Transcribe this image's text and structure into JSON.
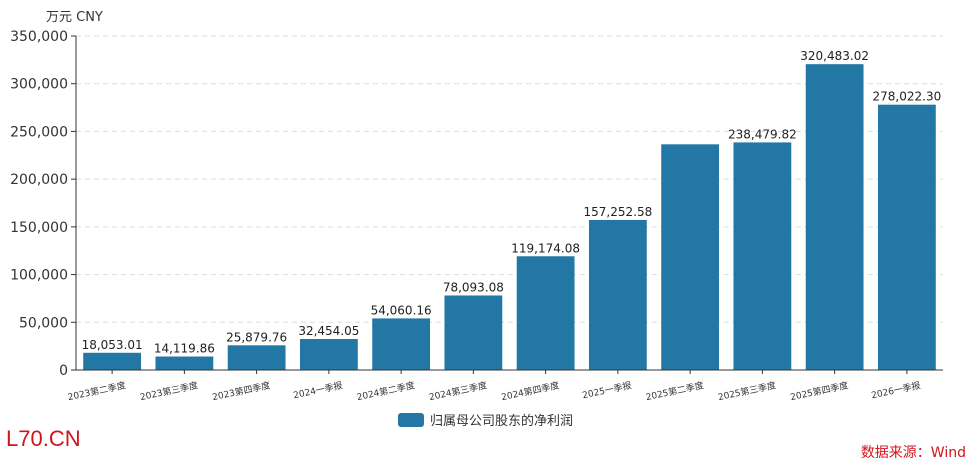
{
  "unit_label": "万元  CNY",
  "brand": "L70.CN",
  "source": "数据来源：Wind",
  "colors": {
    "bar": "#2277a4",
    "grid": "#dddddd",
    "axis": "#333333",
    "brand": "#d2141c"
  },
  "chart_data": {
    "type": "bar",
    "categories": [
      "2023第二季度",
      "2023第三季度",
      "2023第四季度",
      "2024一季报",
      "2024第二季度",
      "2024第三季度",
      "2024第四季度",
      "2025一季报",
      "2025第二季度",
      "2025第三季度",
      "2025第四季度",
      "2026一季报"
    ],
    "series": [
      {
        "name": "归属母公司股东的净利润",
        "values": [
          18053.01,
          14119.86,
          25879.76,
          32454.05,
          54060.16,
          78093.08,
          119174.08,
          157252.58,
          236500,
          238479.82,
          320483.02,
          278022.3
        ],
        "labels": [
          "18,053.01",
          "14,119.86",
          "25,879.76",
          "32,454.05",
          "54,060.16",
          "78,093.08",
          "119,174.08",
          "157,252.58",
          "",
          "238,479.82",
          "320,483.02",
          "278,022.30"
        ]
      }
    ],
    "ylim": [
      0,
      350000
    ],
    "yticks": [
      "0",
      "50,000",
      "100,000",
      "150,000",
      "200,000",
      "250,000",
      "300,000",
      "350,000"
    ],
    "grid": true,
    "legend_position": "bottom-center"
  }
}
